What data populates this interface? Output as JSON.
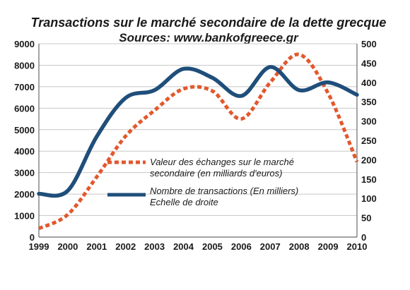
{
  "chart_data": {
    "type": "line",
    "title": "Transactions sur le marché secondaire de la dette grecque",
    "subtitle": "Sources: www.bankofgreece.gr",
    "x": [
      1999,
      2000,
      2001,
      2002,
      2003,
      2004,
      2005,
      2006,
      2007,
      2008,
      2009,
      2010
    ],
    "x_ticks": [
      "1999",
      "2000",
      "2001",
      "2002",
      "2003",
      "2004",
      "2005",
      "2006",
      "2007",
      "2008",
      "2009",
      "2010"
    ],
    "y_left_ticks": [
      "0",
      "1000",
      "2000",
      "3000",
      "4000",
      "5000",
      "6000",
      "7000",
      "8000",
      "9000"
    ],
    "y_right_ticks": [
      "0",
      "50",
      "100",
      "150",
      "200",
      "250",
      "300",
      "350",
      "400",
      "450",
      "500"
    ],
    "ylim_left": [
      0,
      9000
    ],
    "ylim_right": [
      0,
      500
    ],
    "grid": true,
    "legend_position": "center-right",
    "series": [
      {
        "name": "Valeur des échanges sur le marché secondaire (en milliards d'euros)",
        "axis": "left",
        "style": "dashed",
        "color": "#e2582c",
        "values": [
          400,
          1050,
          2800,
          4700,
          5900,
          6900,
          6800,
          5500,
          7200,
          8500,
          6700,
          3500
        ]
      },
      {
        "name": "Nombre de transactions (En milliers) Echelle de droite",
        "axis": "right",
        "style": "solid",
        "color": "#1f4e7a",
        "values": [
          112,
          120,
          260,
          360,
          380,
          435,
          412,
          365,
          440,
          380,
          400,
          368
        ]
      }
    ],
    "legend": [
      {
        "line1": "Valeur des échanges sur le marché",
        "line2": "secondaire (en milliards d'euros)"
      },
      {
        "line1": "Nombre de transactions (En milliers)",
        "line2": "Echelle de droite"
      }
    ]
  }
}
